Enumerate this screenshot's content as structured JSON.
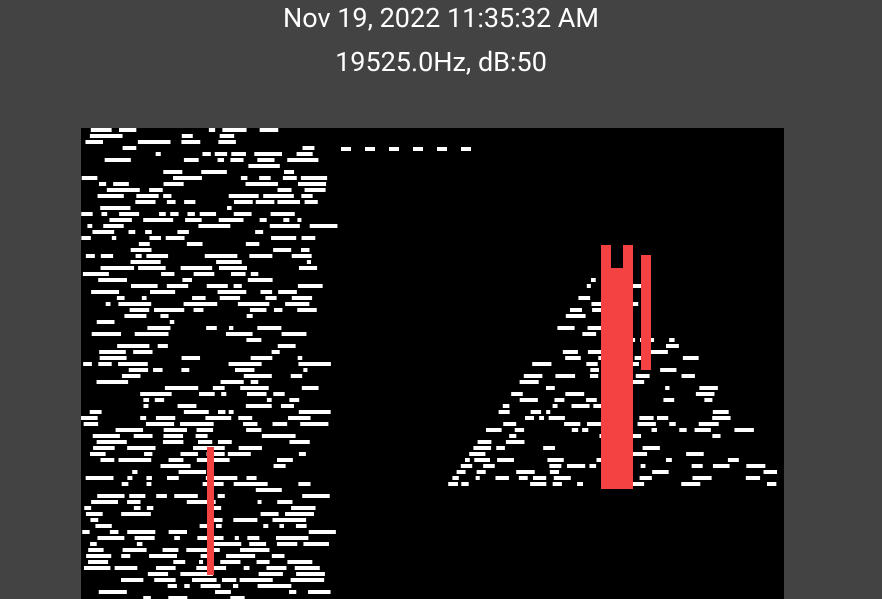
{
  "header": {
    "timestamp": "Nov 19, 2022 11:35:32 AM",
    "reading": "19525.0Hz, dB:50"
  }
}
